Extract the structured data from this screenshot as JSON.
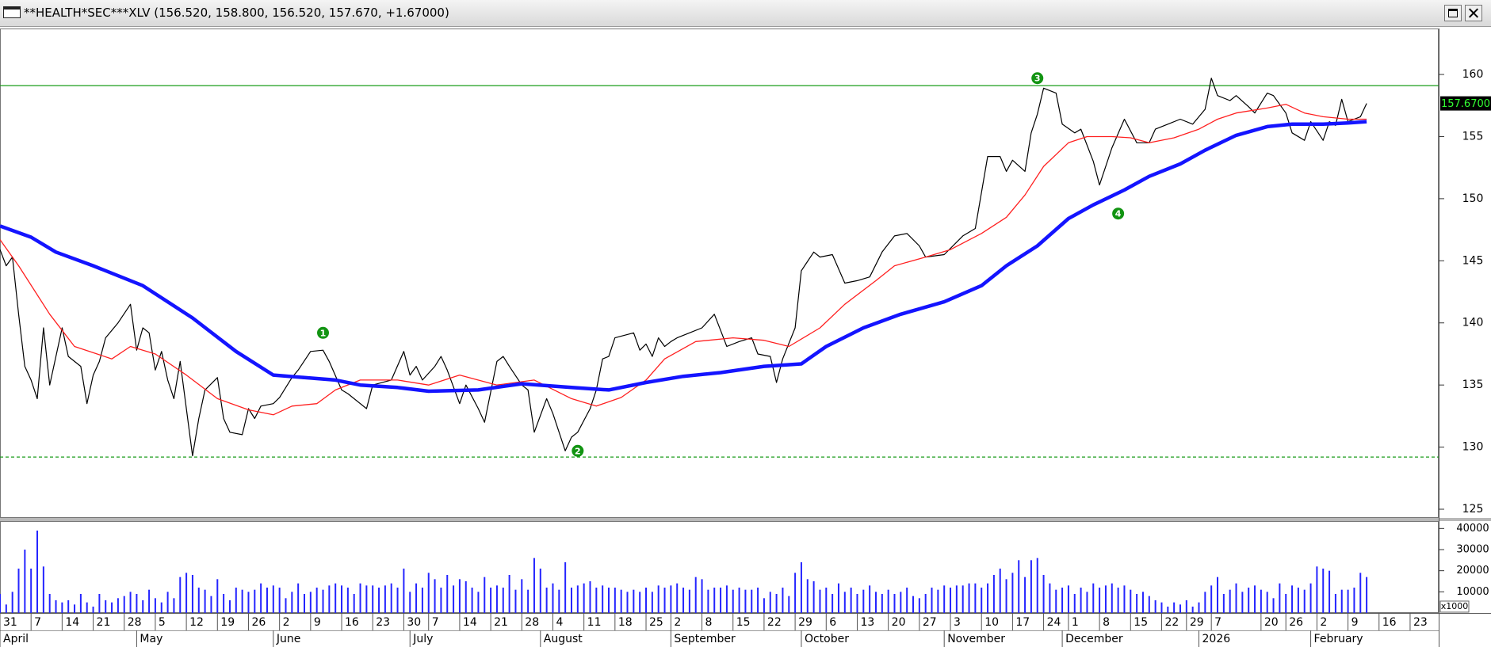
{
  "window_title": "**HEALTH*SEC***XLV (156.520, 158.800, 156.520, 157.670, +1.67000)",
  "chart_data": [
    {
      "type": "line",
      "xlim": [
        0,
        231.6
      ],
      "ylim": [
        124.3,
        163.7
      ],
      "yticks": [
        125,
        130,
        135,
        140,
        145,
        150,
        155,
        160
      ],
      "series": [
        {
          "color": "#000000",
          "x": [
            0,
            1,
            2,
            3,
            4,
            5,
            6,
            7,
            8,
            10,
            11,
            13,
            14,
            15,
            16,
            17,
            19,
            21,
            22,
            23,
            24,
            25,
            26,
            27,
            28,
            29,
            31,
            32,
            33,
            35,
            36,
            37,
            39,
            40,
            41,
            42,
            44,
            45,
            47,
            48,
            50,
            52,
            53,
            55,
            56,
            59,
            60,
            63,
            65,
            66,
            67,
            68,
            70,
            71,
            72,
            74,
            75,
            77,
            78,
            80,
            81,
            82,
            84,
            85,
            86,
            88,
            89,
            91,
            92,
            93,
            95,
            96,
            97,
            98,
            99,
            102,
            103,
            104,
            105,
            106,
            107,
            108,
            109,
            111,
            113,
            115,
            116,
            117,
            119,
            121,
            122,
            124,
            125,
            126,
            128,
            129,
            131,
            132,
            134,
            136,
            138,
            140,
            142,
            144,
            146,
            148,
            149,
            152,
            155,
            157,
            159,
            161,
            162,
            163,
            165,
            166,
            167,
            168,
            170,
            171,
            173,
            174,
            176,
            177,
            179,
            181,
            183,
            185,
            186,
            188,
            190,
            192,
            194,
            195,
            196,
            198,
            199,
            201,
            202,
            204,
            205,
            207,
            208,
            210,
            211,
            213,
            214,
            215,
            216,
            217,
            218,
            219,
            220
          ],
          "values": [
            145.9,
            144.6,
            145.3,
            140.7,
            136.5,
            135.4,
            133.9,
            139.6,
            135.0,
            139.6,
            137.3,
            136.5,
            133.5,
            135.8,
            136.9,
            138.8,
            140.0,
            141.5,
            137.8,
            139.6,
            139.2,
            136.2,
            137.7,
            135.4,
            133.9,
            136.9,
            129.3,
            132.3,
            134.6,
            135.6,
            132.3,
            131.2,
            131.0,
            133.1,
            132.3,
            133.3,
            133.5,
            134.0,
            135.6,
            136.2,
            137.7,
            137.8,
            136.9,
            134.6,
            134.3,
            133.1,
            135.0,
            135.4,
            137.7,
            135.8,
            136.5,
            135.4,
            136.5,
            137.3,
            136.2,
            133.5,
            135.0,
            133.1,
            132.0,
            136.9,
            137.3,
            136.5,
            135.0,
            134.6,
            131.2,
            133.9,
            132.7,
            129.7,
            130.8,
            131.2,
            133.1,
            134.6,
            137.1,
            137.3,
            138.8,
            139.2,
            137.8,
            138.3,
            137.3,
            138.8,
            138.1,
            138.5,
            138.8,
            139.2,
            139.6,
            140.7,
            139.4,
            138.1,
            138.5,
            138.8,
            137.5,
            137.3,
            135.2,
            137.1,
            139.6,
            144.2,
            145.7,
            145.3,
            145.5,
            143.2,
            143.4,
            143.7,
            145.7,
            147.0,
            147.2,
            146.2,
            145.3,
            145.5,
            147.0,
            147.6,
            153.4,
            153.4,
            152.2,
            153.1,
            152.2,
            155.3,
            156.8,
            158.9,
            158.5,
            156.0,
            155.3,
            155.6,
            153.0,
            151.1,
            154.1,
            156.4,
            154.5,
            154.5,
            155.6,
            156.0,
            156.4,
            156.0,
            157.2,
            159.7,
            158.3,
            157.9,
            158.3,
            157.4,
            156.9,
            158.5,
            158.3,
            156.9,
            155.3,
            154.7,
            156.2,
            154.7,
            156.2,
            155.9,
            158.0,
            156.2,
            156.4,
            156.6,
            157.67
          ]
        },
        {
          "color": "#ff2020",
          "x": [
            0,
            3,
            8,
            12,
            18,
            21,
            25,
            30,
            35,
            40,
            44,
            47,
            51,
            54,
            58,
            64,
            69,
            74,
            80,
            86,
            92,
            96,
            100,
            104,
            107,
            112,
            118,
            123,
            127,
            132,
            136,
            141,
            144,
            149,
            153,
            158,
            162,
            165,
            168,
            172,
            175,
            179,
            182,
            185,
            189,
            193,
            196,
            199,
            204,
            207,
            210,
            213,
            217,
            220
          ],
          "values": [
            146.7,
            144.6,
            140.7,
            138.1,
            137.1,
            138.1,
            137.5,
            135.8,
            133.9,
            133.0,
            132.6,
            133.3,
            133.5,
            134.6,
            135.4,
            135.4,
            135.0,
            135.8,
            135.0,
            135.4,
            133.9,
            133.3,
            134.0,
            135.4,
            137.1,
            138.5,
            138.8,
            138.6,
            138.1,
            139.6,
            141.5,
            143.4,
            144.6,
            145.3,
            145.9,
            147.2,
            148.5,
            150.3,
            152.6,
            154.5,
            155.0,
            155.0,
            154.9,
            154.5,
            154.9,
            155.6,
            156.4,
            156.9,
            157.3,
            157.6,
            156.9,
            156.6,
            156.4,
            156.4
          ]
        },
        {
          "color": "#1414ff",
          "x": [
            0,
            5,
            9,
            15,
            23,
            31,
            38,
            44,
            49,
            54,
            58,
            64,
            69,
            77,
            84,
            92,
            98,
            104,
            110,
            116,
            123,
            129,
            133,
            139,
            145,
            152,
            158,
            162,
            167,
            172,
            176,
            181,
            185,
            190,
            194,
            199,
            204,
            208,
            213,
            217,
            220
          ],
          "values": [
            147.8,
            146.9,
            145.7,
            144.6,
            143.0,
            140.4,
            137.7,
            135.8,
            135.6,
            135.4,
            135.0,
            134.8,
            134.5,
            134.6,
            135.1,
            134.8,
            134.6,
            135.2,
            135.7,
            136.0,
            136.5,
            136.7,
            138.1,
            139.6,
            140.7,
            141.7,
            143.0,
            144.6,
            146.2,
            148.4,
            149.5,
            150.7,
            151.8,
            152.8,
            153.9,
            155.1,
            155.8,
            156.0,
            156.0,
            156.1,
            156.2
          ]
        }
      ],
      "hlines": [
        {
          "value": 159.1,
          "color": "#1a9c1a",
          "style": "solid"
        },
        {
          "value": 129.2,
          "color": "#1a9c1a",
          "style": "dashed"
        }
      ],
      "annotations": [
        {
          "label": "1",
          "x": 52,
          "y": 139.2,
          "color": "#129412"
        },
        {
          "label": "2",
          "x": 93,
          "y": 129.7,
          "color": "#129412"
        },
        {
          "label": "3",
          "x": 167,
          "y": 159.7,
          "color": "#129412"
        },
        {
          "label": "4",
          "x": 180,
          "y": 148.8,
          "color": "#129412"
        }
      ],
      "last_value": {
        "value": 157.67,
        "label": "157.6700"
      }
    },
    {
      "type": "bar",
      "xlim": [
        0,
        231.6
      ],
      "ylim": [
        0,
        43500
      ],
      "yticks": [
        10000,
        20000,
        30000,
        40000
      ],
      "unit_label": "x1000",
      "series": [
        {
          "color": "#2424ff",
          "values": [
            9000,
            4000,
            10000,
            21000,
            30000,
            21000,
            39000,
            22000,
            9000,
            6000,
            5000,
            6000,
            4000,
            9000,
            5000,
            3000,
            9000,
            6000,
            5000,
            7000,
            8000,
            10000,
            9000,
            6000,
            11000,
            7000,
            5000,
            10000,
            7000,
            17000,
            19000,
            18000,
            12000,
            11000,
            8000,
            16000,
            9000,
            6000,
            12000,
            11000,
            10000,
            11000,
            14000,
            12000,
            13000,
            12000,
            7000,
            10000,
            14000,
            9000,
            10000,
            12000,
            11000,
            13000,
            14000,
            13000,
            12000,
            9000,
            14000,
            13000,
            13000,
            12000,
            13000,
            14000,
            12000,
            21000,
            10000,
            14000,
            12000,
            19000,
            16000,
            12000,
            18000,
            13000,
            16000,
            15000,
            12000,
            10000,
            17000,
            12000,
            13000,
            12000,
            18000,
            11000,
            16000,
            11000,
            26000,
            21000,
            12000,
            14000,
            11000,
            24000,
            12000,
            13000,
            14000,
            15000,
            12000,
            13000,
            12000,
            12000,
            11000,
            10000,
            11000,
            10000,
            12000,
            10000,
            13000,
            12000,
            13000,
            14000,
            12000,
            11000,
            17000,
            16000,
            11000,
            12000,
            12000,
            13000,
            11000,
            12000,
            11000,
            11000,
            12000,
            7000,
            10000,
            9000,
            12000,
            8000,
            19000,
            24000,
            16000,
            15000,
            11000,
            12000,
            9000,
            14000,
            10000,
            12000,
            9000,
            11000,
            13000,
            10000,
            9000,
            11000,
            9000,
            10000,
            12000,
            8000,
            7000,
            9000,
            12000,
            11000,
            13000,
            12000,
            13000,
            13000,
            14000,
            14000,
            12000,
            14000,
            18000,
            21000,
            16000,
            19000,
            25000,
            17000,
            25000,
            26000,
            18000,
            14000,
            11000,
            12000,
            13000,
            9000,
            12000,
            10000,
            14000,
            12000,
            13000,
            14000,
            12000,
            13000,
            11000,
            9000,
            10000,
            8000,
            6000,
            5000,
            3000,
            5000,
            4000,
            6000,
            3000,
            5000,
            10000,
            13000,
            17000,
            9000,
            11000,
            14000,
            10000,
            12000,
            13000,
            11000,
            10000,
            7000,
            14000,
            9000,
            13000,
            12000,
            11000,
            14000,
            22000,
            21000,
            20000,
            9000,
            11000,
            11000,
            12000,
            19000,
            17000
          ]
        }
      ],
      "xticks": [
        {
          "value": 0,
          "label": "31"
        },
        {
          "value": 5,
          "label": "7"
        },
        {
          "value": 10,
          "label": "14"
        },
        {
          "value": 15,
          "label": "21"
        },
        {
          "value": 20,
          "label": "28"
        },
        {
          "value": 25,
          "label": "5"
        },
        {
          "value": 30,
          "label": "12"
        },
        {
          "value": 35,
          "label": "19"
        },
        {
          "value": 40,
          "label": "26"
        },
        {
          "value": 45,
          "label": "2"
        },
        {
          "value": 50,
          "label": "9"
        },
        {
          "value": 55,
          "label": "16"
        },
        {
          "value": 60,
          "label": "23"
        },
        {
          "value": 65,
          "label": "30"
        },
        {
          "value": 69,
          "label": "7"
        },
        {
          "value": 74,
          "label": "14"
        },
        {
          "value": 79,
          "label": "21"
        },
        {
          "value": 84,
          "label": "28"
        },
        {
          "value": 89,
          "label": "4"
        },
        {
          "value": 94,
          "label": "11"
        },
        {
          "value": 99,
          "label": "18"
        },
        {
          "value": 104,
          "label": "25"
        },
        {
          "value": 108,
          "label": "2"
        },
        {
          "value": 113,
          "label": "8"
        },
        {
          "value": 118,
          "label": "15"
        },
        {
          "value": 123,
          "label": "22"
        },
        {
          "value": 128,
          "label": "29"
        },
        {
          "value": 133,
          "label": "6"
        },
        {
          "value": 138,
          "label": "13"
        },
        {
          "value": 143,
          "label": "20"
        },
        {
          "value": 148,
          "label": "27"
        },
        {
          "value": 153,
          "label": "3"
        },
        {
          "value": 158,
          "label": "10"
        },
        {
          "value": 163,
          "label": "17"
        },
        {
          "value": 168,
          "label": "24"
        },
        {
          "value": 172,
          "label": "1"
        },
        {
          "value": 177,
          "label": "8"
        },
        {
          "value": 182,
          "label": "15"
        },
        {
          "value": 187,
          "label": "22"
        },
        {
          "value": 191,
          "label": "29"
        },
        {
          "value": 195,
          "label": "7"
        },
        {
          "value": 203,
          "label": "20"
        },
        {
          "value": 207,
          "label": "26"
        },
        {
          "value": 212,
          "label": "2"
        },
        {
          "value": 217,
          "label": "9"
        },
        {
          "value": 222,
          "label": "16"
        },
        {
          "value": 227,
          "label": "23"
        }
      ],
      "month_ticks": [
        {
          "value": 0,
          "label": "April"
        },
        {
          "value": 22,
          "label": "May"
        },
        {
          "value": 44,
          "label": "June"
        },
        {
          "value": 66,
          "label": "July"
        },
        {
          "value": 87,
          "label": "August"
        },
        {
          "value": 108,
          "label": "September"
        },
        {
          "value": 129,
          "label": "October"
        },
        {
          "value": 152,
          "label": "November"
        },
        {
          "value": 171,
          "label": "December"
        },
        {
          "value": 193,
          "label": "2026"
        },
        {
          "value": 211,
          "label": "February"
        }
      ]
    }
  ]
}
